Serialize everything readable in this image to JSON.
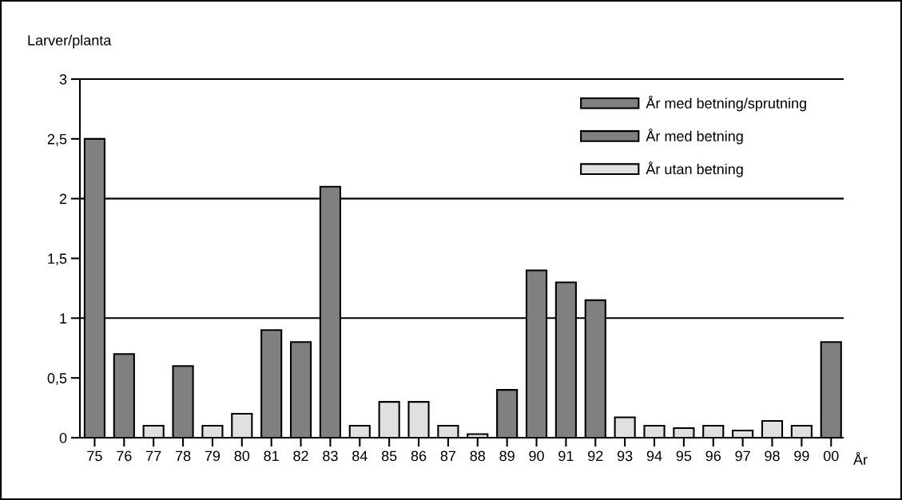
{
  "chart_data": {
    "type": "bar",
    "ylabel": "Larver/planta",
    "xlabel": "År",
    "categories": [
      "75",
      "76",
      "77",
      "78",
      "79",
      "80",
      "81",
      "82",
      "83",
      "84",
      "85",
      "86",
      "87",
      "88",
      "89",
      "90",
      "91",
      "92",
      "93",
      "94",
      "95",
      "96",
      "97",
      "98",
      "99",
      "00"
    ],
    "series": [
      {
        "name": "År med betning/sprutning",
        "color": "#808080",
        "values": [
          null,
          null,
          null,
          null,
          null,
          null,
          null,
          null,
          null,
          null,
          null,
          null,
          null,
          null,
          null,
          null,
          null,
          null,
          null,
          null,
          null,
          null,
          null,
          null,
          null,
          null
        ]
      },
      {
        "name": "År med betning",
        "color": "#808080",
        "values": [
          2.5,
          0.7,
          null,
          0.6,
          null,
          null,
          0.9,
          0.8,
          2.1,
          null,
          null,
          null,
          null,
          null,
          0.4,
          1.4,
          1.3,
          1.15,
          null,
          null,
          null,
          null,
          null,
          null,
          null,
          0.8
        ]
      },
      {
        "name": "År utan betning",
        "color": "#e0e0e0",
        "values": [
          null,
          null,
          0.1,
          null,
          0.1,
          0.2,
          null,
          null,
          null,
          0.1,
          0.3,
          0.3,
          0.1,
          0.03,
          null,
          null,
          null,
          null,
          0.17,
          0.1,
          0.08,
          0.1,
          0.06,
          0.14,
          0.1,
          null
        ]
      }
    ],
    "ylim": [
      0,
      3
    ],
    "yticks": [
      0,
      {
        "value": 0.5,
        "label": "0,5"
      },
      1,
      {
        "value": 1.5,
        "label": "1,5"
      },
      2,
      {
        "value": 2.5,
        "label": "2,5"
      },
      3
    ],
    "ref_lines": [
      {
        "axis": "y",
        "value": 1,
        "color": "#000000"
      },
      {
        "axis": "y",
        "value": 2,
        "color": "#000000"
      }
    ],
    "legend": "top right"
  }
}
